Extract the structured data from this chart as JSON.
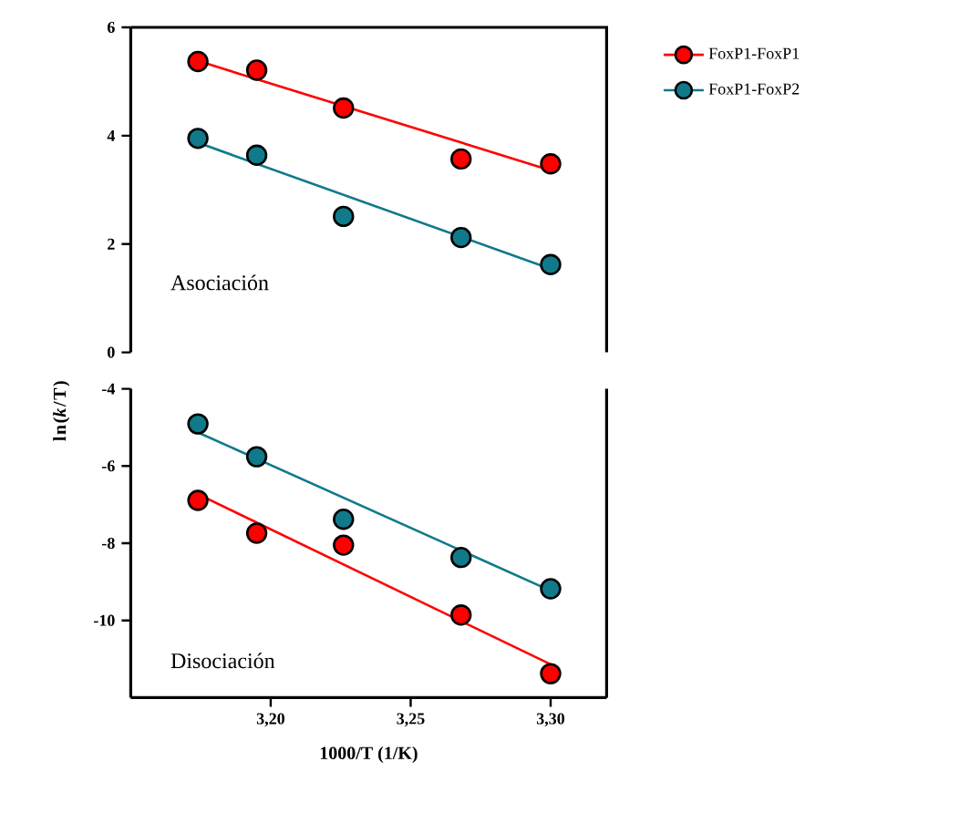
{
  "chart_data": [
    {
      "type": "scatter",
      "ylabel": "ln(*k*/T)",
      "annotations": [
        "Asociación"
      ],
      "xlim": [
        3.15,
        3.32
      ],
      "ylim": [
        0,
        6
      ],
      "yticks": [
        0,
        2,
        4,
        6
      ],
      "tick_labels": "y",
      "legend": "top right",
      "marker": "circle",
      "series": [
        {
          "name": "FoxP1-FoxP1",
          "color": "#ff0000",
          "x": [
            3.174,
            3.195,
            3.226,
            3.268,
            3.3
          ],
          "values": [
            5.37,
            5.21,
            4.51,
            3.57,
            3.48
          ]
        },
        {
          "name": "FoxP1-FoxP2",
          "color": "#107a8b",
          "x": [
            3.174,
            3.195,
            3.226,
            3.268,
            3.3
          ],
          "values": [
            3.95,
            3.64,
            2.51,
            2.12,
            1.62
          ]
        },
        {
          "type": "line",
          "color": "#ff0000",
          "marker": "none",
          "x": [
            3.174,
            3.3
          ],
          "values": [
            5.38,
            3.36
          ]
        },
        {
          "type": "line",
          "color": "#107a8b",
          "marker": "none",
          "x": [
            3.174,
            3.3
          ],
          "values": [
            3.87,
            1.54
          ]
        }
      ]
    },
    {
      "type": "scatter",
      "xlabel": "1000/T (1/K)",
      "annotations": [
        "Disociación"
      ],
      "xlim": [
        3.15,
        3.32
      ],
      "xticks": [
        {
          "value": 3.2,
          "label": "3,20"
        },
        {
          "value": 3.25,
          "label": "3,25"
        },
        {
          "value": 3.3,
          "label": "3,30"
        }
      ],
      "ylim": [
        -12,
        -4
      ],
      "yticks": [
        -10,
        -8,
        -6,
        -4
      ],
      "marker": "circle",
      "series": [
        {
          "color": "#ff0000",
          "x": [
            3.174,
            3.195,
            3.226,
            3.268,
            3.3
          ],
          "values": [
            -6.89,
            -7.74,
            -8.05,
            -9.86,
            -11.38
          ]
        },
        {
          "color": "#107a8b",
          "x": [
            3.174,
            3.195,
            3.226,
            3.268,
            3.3
          ],
          "values": [
            -4.91,
            -5.76,
            -7.38,
            -8.37,
            -9.18
          ]
        },
        {
          "type": "line",
          "color": "#ff0000",
          "marker": "none",
          "x": [
            3.174,
            3.3
          ],
          "values": [
            -6.73,
            -11.14
          ]
        },
        {
          "type": "line",
          "color": "#107a8b",
          "marker": "none",
          "x": [
            3.174,
            3.3
          ],
          "values": [
            -5.13,
            -9.23
          ]
        }
      ]
    }
  ]
}
